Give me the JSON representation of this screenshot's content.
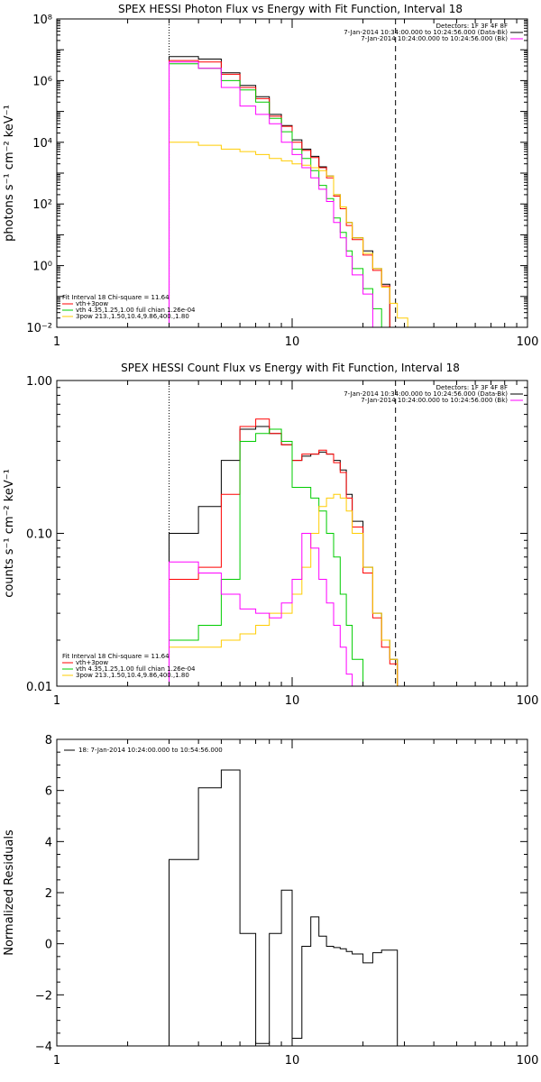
{
  "chart_data": [
    {
      "type": "line",
      "title": "SPEX HESSI Photon Flux vs Energy with Fit Function, Interval 18",
      "xlabel": "",
      "ylabel": "photons s⁻¹ cm⁻² keV⁻¹",
      "xscale": "log",
      "yscale": "log",
      "xlim": [
        1,
        100
      ],
      "ylim": [
        0.01,
        100000000
      ],
      "x_ticks": [
        1,
        10,
        100
      ],
      "x_tick_labels": [
        "1",
        "10",
        "100"
      ],
      "y_ticks": [
        0.01,
        1,
        100,
        10000,
        1000000,
        100000000
      ],
      "y_tick_labels": [
        "10⁻²",
        "10⁰",
        "10²",
        "10⁴",
        "10⁶",
        "10⁸"
      ],
      "vlines": [
        {
          "x": 3.0,
          "style": "dotted"
        },
        {
          "x": 27.5,
          "style": "dashed"
        }
      ],
      "legend_top": [
        "Detectors: 1F 3F 4F 8F",
        "7-Jan-2014 10:34:00.000 to 10:24:56.000 (Data-Bk)",
        "7-Jan-2014 10:24:00.000 to 10:24:56.000 (Bk)"
      ],
      "legend_top_colors": [
        "",
        "#000000",
        "#ff00ff"
      ],
      "legend_bottom": [
        "Fit Interval 18   Chi-square = 11.64",
        "vth+3pow",
        "vth 4.35,1.25,1.00  full chian 1.26e-04",
        "3pow 213.,1.50,10.4,9.86,400.,1.80"
      ],
      "legend_bottom_colors": [
        "",
        "#ff0000",
        "#00cc00",
        "#ffcc00"
      ],
      "edges": [
        3,
        4,
        5,
        6,
        7,
        8,
        9,
        10,
        11,
        12,
        13,
        14,
        15,
        16,
        17,
        18,
        20,
        22,
        24,
        26,
        28,
        31,
        34,
        38
      ],
      "series": [
        {
          "color": "#000000",
          "values": [
            6000000,
            5000000,
            1800000,
            700000,
            300000,
            80000,
            35000,
            12000,
            6000,
            3500,
            1600,
            800,
            200,
            80,
            25,
            8,
            3,
            0.8,
            0.25
          ]
        },
        {
          "color": "#ff0000",
          "values": [
            4500000,
            4000000,
            1600000,
            600000,
            260000,
            70000,
            33000,
            10000,
            5500,
            3200,
            1500,
            700,
            180,
            70,
            20,
            7,
            2.2,
            0.7,
            0.22
          ]
        },
        {
          "color": "#00cc00",
          "values": [
            3500000,
            2500000,
            1000000,
            500000,
            200000,
            60000,
            22000,
            6000,
            3000,
            1200,
            400,
            150,
            35,
            12,
            3,
            0.8,
            0.18,
            0.04,
            0.01
          ]
        },
        {
          "color": "#ffcc00",
          "values": [
            10000,
            8000,
            6000,
            5000,
            4000,
            3000,
            2500,
            2000,
            1800,
            1500,
            1200,
            800,
            200,
            80,
            25,
            8,
            2.5,
            0.8,
            0.2,
            0.06,
            0.02,
            0.01,
            0.008
          ]
        },
        {
          "color": "#ff00ff",
          "values": [
            4000000,
            2500000,
            600000,
            150000,
            80000,
            40000,
            10000,
            4000,
            1500,
            700,
            300,
            120,
            25,
            8,
            2,
            0.5,
            0.12
          ]
        }
      ]
    },
    {
      "type": "line",
      "title": "SPEX HESSI Count Flux vs Energy with Fit Function, Interval 18",
      "xlabel": "",
      "ylabel": "counts s⁻¹ cm⁻² keV⁻¹",
      "xscale": "log",
      "yscale": "log",
      "xlim": [
        1,
        100
      ],
      "ylim": [
        0.01,
        1
      ],
      "x_ticks": [
        1,
        10,
        100
      ],
      "x_tick_labels": [
        "1",
        "10",
        "100"
      ],
      "y_ticks": [
        0.01,
        0.1,
        1
      ],
      "y_tick_labels": [
        "0.01",
        "0.10",
        "1.00"
      ],
      "vlines": [
        {
          "x": 3.0,
          "style": "dotted"
        },
        {
          "x": 27.5,
          "style": "dashed"
        }
      ],
      "legend_top": [
        "Detectors: 1F 3F 4F 8F",
        "7-Jan-2014 10:34:00.000 to 10:24:56.000 (Data-Bk)",
        "7-Jan-2014 10:24:00.000 to 10:24:56.000 (Bk)"
      ],
      "legend_top_colors": [
        "",
        "#000000",
        "#ff00ff"
      ],
      "legend_bottom": [
        "Fit Interval 18   Chi-square = 11.64",
        "vth+3pow",
        "vth 4.35,1.25,1.00  full chian 1.26e-04",
        "3pow 213.,1.50,10.4,9.86,400.,1.80"
      ],
      "legend_bottom_colors": [
        "",
        "#ff0000",
        "#00cc00",
        "#ffcc00"
      ],
      "edges": [
        3,
        4,
        5,
        6,
        7,
        8,
        9,
        10,
        11,
        12,
        13,
        14,
        15,
        16,
        17,
        18,
        20,
        22,
        24,
        26,
        28
      ],
      "series": [
        {
          "color": "#000000",
          "values": [
            0.1,
            0.15,
            0.3,
            0.48,
            0.5,
            0.45,
            0.38,
            0.3,
            0.32,
            0.33,
            0.34,
            0.33,
            0.3,
            0.26,
            0.18,
            0.12,
            0.06,
            0.03,
            0.02,
            0.015
          ]
        },
        {
          "color": "#ff0000",
          "values": [
            0.05,
            0.06,
            0.18,
            0.5,
            0.56,
            0.45,
            0.38,
            0.3,
            0.33,
            0.33,
            0.35,
            0.33,
            0.29,
            0.25,
            0.17,
            0.11,
            0.055,
            0.028,
            0.018,
            0.014
          ]
        },
        {
          "color": "#00cc00",
          "values": [
            0.02,
            0.025,
            0.05,
            0.4,
            0.45,
            0.48,
            0.4,
            0.2,
            0.2,
            0.17,
            0.14,
            0.1,
            0.07,
            0.04,
            0.025,
            0.015,
            0.009
          ]
        },
        {
          "color": "#ffcc00",
          "values": [
            0.018,
            0.018,
            0.02,
            0.022,
            0.025,
            0.03,
            0.03,
            0.04,
            0.06,
            0.1,
            0.15,
            0.17,
            0.18,
            0.17,
            0.14,
            0.1,
            0.06,
            0.03,
            0.02,
            0.015
          ]
        },
        {
          "color": "#ff00ff",
          "values": [
            0.065,
            0.055,
            0.04,
            0.032,
            0.03,
            0.028,
            0.035,
            0.05,
            0.1,
            0.08,
            0.05,
            0.035,
            0.025,
            0.018,
            0.012,
            0.009
          ]
        }
      ]
    },
    {
      "type": "line",
      "title": "",
      "xlabel": "",
      "ylabel": "Normalized Residuals",
      "xscale": "log",
      "yscale": "linear",
      "xlim": [
        1,
        100
      ],
      "ylim": [
        -4,
        8
      ],
      "x_ticks": [
        1,
        10,
        100
      ],
      "x_tick_labels": [
        "1",
        "10",
        "100"
      ],
      "y_ticks": [
        -4,
        -2,
        0,
        2,
        4,
        6,
        8
      ],
      "y_tick_labels": [
        "−4",
        "−2",
        "0",
        "2",
        "4",
        "6",
        "8"
      ],
      "legend_top": [
        "18:  7-Jan-2014 10:24:00.000 to 10:54:56.000"
      ],
      "legend_top_colors": [
        "#000000"
      ],
      "edges": [
        3,
        4,
        5,
        6,
        7,
        8,
        9,
        10,
        11,
        12,
        13,
        14,
        15,
        16,
        17,
        18,
        20,
        22,
        24,
        26,
        28
      ],
      "series": [
        {
          "color": "#000000",
          "values": [
            3.3,
            6.1,
            6.8,
            0.4,
            -3.9,
            0.4,
            2.1,
            -3.7,
            -0.1,
            1.05,
            0.3,
            -0.1,
            -0.15,
            -0.2,
            -0.3,
            -0.4,
            -0.75,
            -0.35,
            -0.25,
            -0.25
          ]
        }
      ]
    }
  ]
}
